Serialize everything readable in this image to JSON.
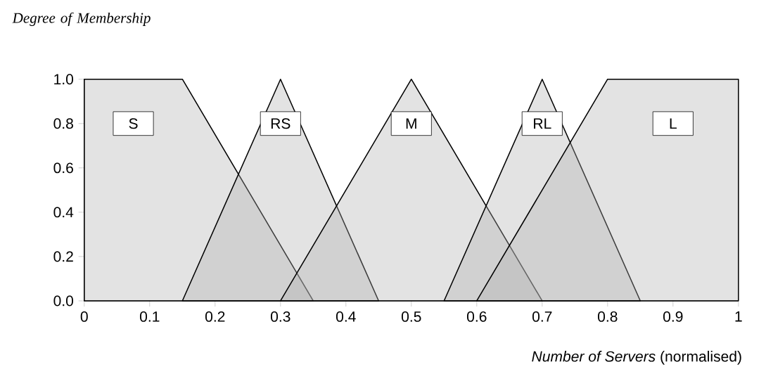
{
  "chart_data": {
    "type": "area",
    "ylabel": "Degree of Membership",
    "xlabel": "*Number of Servers* (normalised)",
    "xlim": [
      0,
      1
    ],
    "ylim": [
      0,
      1
    ],
    "xticks": [
      0,
      0.1,
      0.2,
      0.3,
      0.4,
      0.5,
      0.6,
      0.7,
      0.8,
      0.9,
      1
    ],
    "yticks": [
      {
        "value": 0,
        "label": "0.0"
      },
      {
        "value": 0.2,
        "label": "0.2"
      },
      {
        "value": 0.4,
        "label": "0.4"
      },
      {
        "value": 0.6,
        "label": "0.6"
      },
      {
        "value": 0.8,
        "label": "0.8"
      },
      {
        "value": 1,
        "label": "1.0"
      }
    ],
    "series": [
      {
        "name": "S",
        "color": "#b0b0b0",
        "x": [
          0,
          0.15,
          0.35
        ],
        "values": [
          1,
          1,
          0
        ]
      },
      {
        "name": "RS",
        "color": "#b0b0b0",
        "x": [
          0.15,
          0.3,
          0.45
        ],
        "values": [
          0,
          1,
          0
        ]
      },
      {
        "name": "M",
        "color": "#b0b0b0",
        "x": [
          0.3,
          0.5,
          0.7
        ],
        "values": [
          0,
          1,
          0
        ]
      },
      {
        "name": "RL",
        "color": "#b0b0b0",
        "x": [
          0.55,
          0.7,
          0.85
        ],
        "values": [
          0,
          1,
          0
        ]
      },
      {
        "name": "L",
        "color": "#b0b0b0",
        "x": [
          0.6,
          0.8,
          1
        ],
        "values": [
          0,
          1,
          1
        ]
      }
    ],
    "legend": false,
    "grid": false
  }
}
